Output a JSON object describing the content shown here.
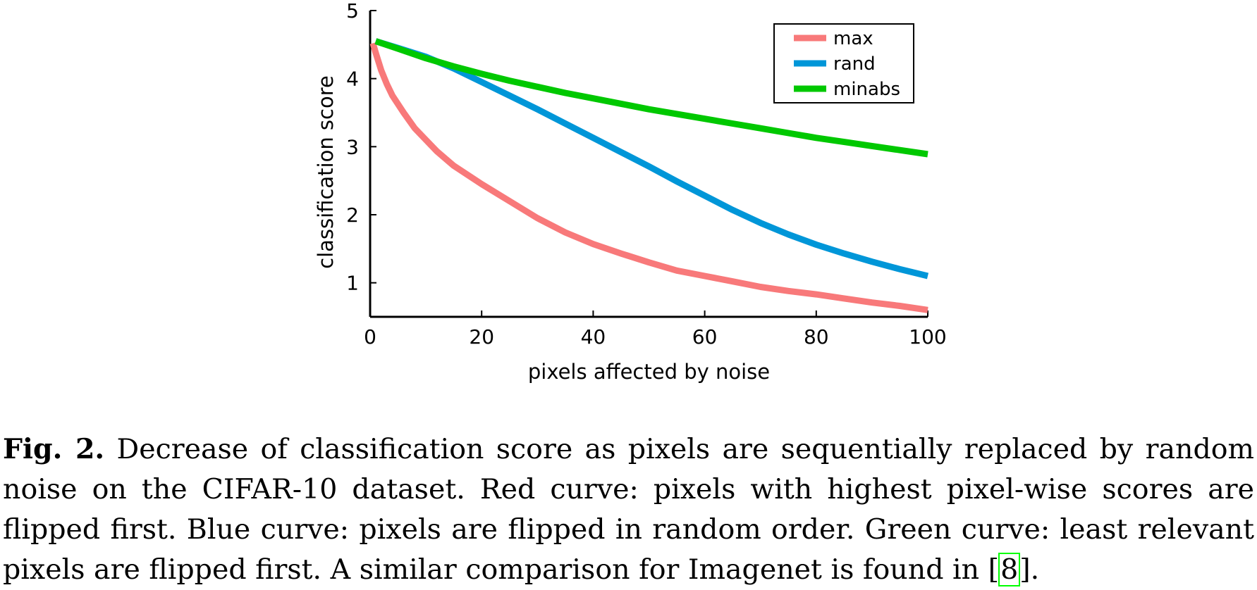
{
  "chart_data": {
    "type": "line",
    "xlabel": "pixels affected by noise",
    "ylabel": "classification score",
    "xlim": [
      0,
      100
    ],
    "ylim": [
      0.5,
      5
    ],
    "xticks": [
      0,
      20,
      40,
      60,
      80,
      100
    ],
    "yticks": [
      1,
      2,
      3,
      4,
      5
    ],
    "grid": false,
    "legend_position": "top-right",
    "series": [
      {
        "name": "max",
        "color": "#f8797a",
        "x": [
          0.5,
          1,
          2,
          3,
          4,
          6,
          8,
          10,
          12,
          15,
          20,
          25,
          30,
          35,
          40,
          45,
          50,
          55,
          60,
          65,
          70,
          75,
          80,
          85,
          90,
          95,
          100
        ],
        "y": [
          4.52,
          4.38,
          4.12,
          3.92,
          3.75,
          3.5,
          3.27,
          3.1,
          2.93,
          2.72,
          2.45,
          2.2,
          1.95,
          1.74,
          1.57,
          1.43,
          1.3,
          1.18,
          1.1,
          1.02,
          0.94,
          0.88,
          0.83,
          0.77,
          0.71,
          0.66,
          0.6
        ]
      },
      {
        "name": "rand",
        "color": "#0096d8",
        "x": [
          1,
          5,
          10,
          15,
          20,
          25,
          30,
          35,
          40,
          45,
          50,
          55,
          60,
          65,
          70,
          75,
          80,
          85,
          90,
          95,
          100
        ],
        "y": [
          4.55,
          4.45,
          4.32,
          4.15,
          3.95,
          3.75,
          3.55,
          3.34,
          3.13,
          2.92,
          2.71,
          2.49,
          2.28,
          2.07,
          1.88,
          1.71,
          1.56,
          1.43,
          1.31,
          1.2,
          1.1
        ]
      },
      {
        "name": "minabs",
        "color": "#00c800",
        "x": [
          1,
          5,
          10,
          15,
          20,
          25,
          30,
          35,
          40,
          45,
          50,
          55,
          60,
          65,
          70,
          75,
          80,
          85,
          90,
          95,
          100
        ],
        "y": [
          4.55,
          4.44,
          4.3,
          4.18,
          4.07,
          3.97,
          3.88,
          3.79,
          3.71,
          3.63,
          3.55,
          3.48,
          3.41,
          3.34,
          3.27,
          3.2,
          3.13,
          3.07,
          3.01,
          2.95,
          2.89
        ]
      }
    ]
  },
  "caption": {
    "label": "Fig. 2.",
    "text_before": " Decrease of classification score as pixels are sequentially replaced by random noise on the CIFAR-10 dataset. Red curve: pixels with highest pixel-wise scores are flipped first. Blue curve: pixels are flipped in random order. Green curve: least relevant pixels are flipped first. A similar comparison for Imagenet is found in [",
    "citation": "8",
    "text_after": "]."
  }
}
